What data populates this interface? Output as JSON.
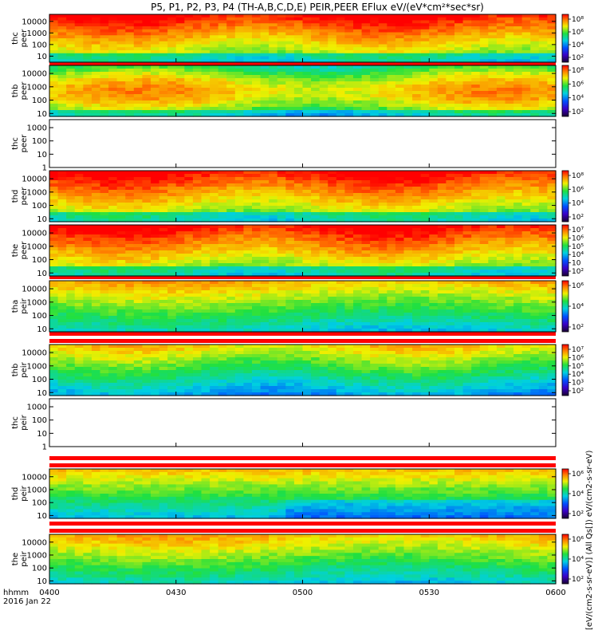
{
  "title": "P5, P1, P2, P3, P4 (TH-A,B,C,D,E) PEIR,PEER EFlux eV/(eV*cm²*sec*sr)",
  "colorbar_label": "[eV/(cm2-s-sr-eV)] (All Qs[]) eV/(cm2-s-sr-eV)",
  "time_axis": {
    "ticks": [
      "0400",
      "0430",
      "0500",
      "0530",
      "0600"
    ],
    "label_line1": "hhmm",
    "label_line2": "2016 Jan 22"
  },
  "chart_data": {
    "type": "heatmap",
    "quantity": "Energy flux eV/(eV*cm^2*sec*sr)",
    "x_range": [
      "0400",
      "0600"
    ],
    "y_scale": "log",
    "panels": [
      {
        "label": [
          "thc",
          "peer"
        ],
        "ylim": [
          3,
          40000
        ],
        "yticks": [
          "10",
          "100",
          "1000",
          "10000"
        ],
        "has_data": true,
        "colorbar": true,
        "cb_ticks": [
          "10²",
          "10⁴",
          "10⁶",
          "10⁸"
        ],
        "profile": "hot"
      },
      {
        "label": [
          "thb",
          "peer"
        ],
        "ylim": [
          6,
          40000
        ],
        "yticks": [
          "10",
          "100",
          "1000",
          "10000"
        ],
        "has_data": true,
        "colorbar": true,
        "cb_ticks": [
          "10²",
          "10⁴",
          "10⁶",
          "10⁸"
        ],
        "profile": "hot2"
      },
      {
        "label": [
          "thc",
          "peer"
        ],
        "ylim": [
          1,
          4000
        ],
        "yticks": [
          "1",
          "10",
          "100",
          "1000"
        ],
        "has_data": false,
        "colorbar": false
      },
      {
        "label": [
          "thd",
          "peer"
        ],
        "ylim": [
          6,
          40000
        ],
        "yticks": [
          "10",
          "100",
          "1000",
          "10000"
        ],
        "has_data": true,
        "colorbar": true,
        "cb_ticks": [
          "10²",
          "10⁴",
          "10⁶",
          "10⁸"
        ],
        "profile": "hot"
      },
      {
        "label": [
          "the",
          "peer"
        ],
        "ylim": [
          6,
          40000
        ],
        "yticks": [
          "10",
          "100",
          "1000",
          "10000"
        ],
        "has_data": true,
        "colorbar": true,
        "cb_ticks": [
          "10²",
          "10⁳",
          "10⁴",
          "10⁵",
          "10⁶",
          "10⁷"
        ],
        "profile": "hot"
      },
      {
        "label": [
          "tha",
          "peir"
        ],
        "ylim": [
          6,
          40000
        ],
        "yticks": [
          "10",
          "100",
          "1000",
          "10000"
        ],
        "has_data": true,
        "colorbar": true,
        "cb_ticks": [
          "10²",
          "10⁴",
          "10⁶"
        ],
        "profile": "ion"
      },
      {
        "label": [
          "thb",
          "peir"
        ],
        "ylim": [
          6,
          40000
        ],
        "yticks": [
          "10",
          "100",
          "1000",
          "10000"
        ],
        "has_data": true,
        "colorbar": true,
        "cb_ticks": [
          "10²",
          "10³",
          "10⁴",
          "10⁵",
          "10⁶",
          "10⁷"
        ],
        "profile": "ion2"
      },
      {
        "label": [
          "thc",
          "peir"
        ],
        "ylim": [
          1,
          4000
        ],
        "yticks": [
          "1",
          "10",
          "100",
          "1000"
        ],
        "has_data": false,
        "colorbar": false
      },
      {
        "label": [
          "thd",
          "peir"
        ],
        "ylim": [
          6,
          40000
        ],
        "yticks": [
          "10",
          "100",
          "1000",
          "10000"
        ],
        "has_data": true,
        "colorbar": true,
        "cb_ticks": [
          "10²",
          "10⁴",
          "10⁶"
        ],
        "profile": "ion3"
      },
      {
        "label": [
          "the",
          "peir"
        ],
        "ylim": [
          6,
          40000
        ],
        "yticks": [
          "10",
          "100",
          "1000",
          "10000"
        ],
        "has_data": true,
        "colorbar": true,
        "cb_ticks": [
          "10²",
          "10⁴",
          "10⁶"
        ],
        "profile": "ion"
      }
    ]
  }
}
